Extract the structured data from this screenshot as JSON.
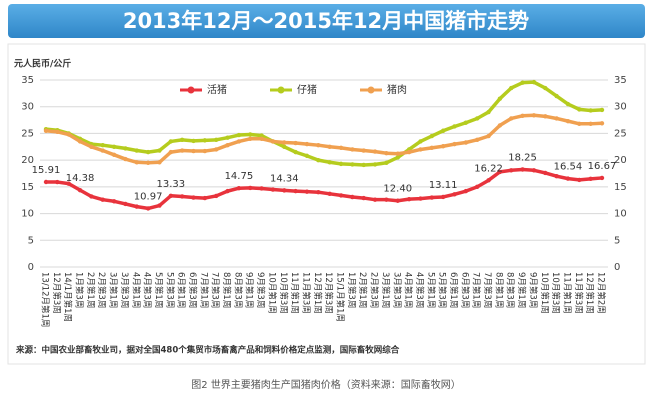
{
  "header": {
    "title": "2013年12月～2015年12月中国猪市走势"
  },
  "chart_data": {
    "type": "line",
    "ylabel": "元人民币/公斤",
    "categories": [
      "13/12月第1周",
      "12月第3周",
      "14/1月第1周",
      "1月第3周",
      "2月第1周",
      "2月第3周",
      "3月第1周",
      "3月第3周",
      "4月第1周",
      "4月第3周",
      "5月第1周",
      "5月第3周",
      "6月第1周",
      "6月第3周",
      "7月第1周",
      "7月第3周",
      "8月第1周",
      "8月第3周",
      "9月第1周",
      "9月第3周",
      "10月第1周",
      "10月第3周",
      "11月第1周",
      "11月第3周",
      "12月第1周",
      "12月第3周",
      "15/1月第1周",
      "1月第3周",
      "2月第1周",
      "2月第3周",
      "3月第1周",
      "3月第3周",
      "4月第1周",
      "4月第3周",
      "5月第1周",
      "5月第3周",
      "6月第1周",
      "6月第3周",
      "7月第1周",
      "7月第3周",
      "8月第1周",
      "8月第3周",
      "9月第1周",
      "9月第3周",
      "10月第1周",
      "10月第3周",
      "11月第1周",
      "11月第3周",
      "12月第1周",
      "12月第2周"
    ],
    "series": [
      {
        "name": "活猪",
        "color": "#e8333c",
        "values": [
          15.91,
          15.9,
          15.6,
          14.38,
          13.2,
          12.6,
          12.3,
          11.8,
          11.3,
          10.97,
          11.5,
          13.33,
          13.2,
          13.0,
          12.9,
          13.3,
          14.2,
          14.75,
          14.8,
          14.7,
          14.5,
          14.34,
          14.2,
          14.1,
          14.0,
          13.7,
          13.4,
          13.1,
          12.9,
          12.6,
          12.6,
          12.4,
          12.7,
          12.8,
          13.0,
          13.11,
          13.6,
          14.2,
          15.0,
          16.22,
          17.8,
          18.1,
          18.25,
          18.1,
          17.6,
          17.0,
          16.54,
          16.3,
          16.5,
          16.67
        ],
        "value_labels": [
          "15.91",
          null,
          null,
          "14.38",
          null,
          null,
          null,
          null,
          null,
          "10.97",
          null,
          "13.33",
          null,
          null,
          null,
          null,
          null,
          "14.75",
          null,
          null,
          null,
          "14.34",
          null,
          null,
          null,
          null,
          null,
          null,
          null,
          null,
          null,
          "12.40",
          null,
          null,
          null,
          "13.11",
          null,
          null,
          null,
          "16.22",
          null,
          null,
          "18.25",
          null,
          null,
          null,
          "16.54",
          null,
          null,
          "16.67"
        ]
      },
      {
        "name": "仔猪",
        "color": "#b5cc1e",
        "values": [
          25.8,
          25.6,
          25,
          24,
          23,
          22.8,
          22.5,
          22.2,
          21.8,
          21.5,
          21.8,
          23.5,
          23.8,
          23.6,
          23.7,
          23.8,
          24.2,
          24.7,
          24.8,
          24.6,
          23.5,
          22.5,
          21.5,
          20.8,
          20.0,
          19.6,
          19.3,
          19.2,
          19.1,
          19.2,
          19.5,
          20.5,
          22.0,
          23.5,
          24.5,
          25.5,
          26.3,
          27.0,
          27.8,
          29.0,
          31.5,
          33.5,
          34.5,
          34.6,
          33.5,
          32.0,
          30.5,
          29.5,
          29.3,
          29.4
        ]
      },
      {
        "name": "猪肉",
        "color": "#f0a050",
        "values": [
          25.5,
          25.3,
          24.8,
          23.5,
          22.5,
          21.8,
          21,
          20.2,
          19.6,
          19.5,
          19.6,
          21.5,
          21.8,
          21.7,
          21.7,
          22.0,
          22.8,
          23.5,
          24,
          24,
          23.5,
          23.3,
          23.2,
          23.0,
          22.8,
          22.5,
          22.3,
          22.0,
          21.8,
          21.6,
          21.3,
          21.2,
          21.5,
          22.0,
          22.3,
          22.6,
          23,
          23.3,
          23.8,
          24.5,
          26.5,
          27.8,
          28.3,
          28.4,
          28.2,
          27.8,
          27.3,
          26.8,
          26.8,
          26.9
        ]
      }
    ],
    "ylim": [
      0,
      35
    ],
    "yticks": [
      0,
      5,
      10,
      15,
      20,
      25,
      30,
      35
    ],
    "y2lim": [
      0,
      35
    ],
    "y2ticks": [
      0,
      5,
      10,
      15,
      20,
      25,
      30,
      35
    ],
    "grid": true,
    "source": "来源：中国农业部畜牧业司，据对全国480个集贸市场畜禽产品和饲料价格定点监测，国际畜牧网综合"
  },
  "caption": "图2 世界主要猪肉生产国猪肉价格（资料来源：国际畜牧网）"
}
